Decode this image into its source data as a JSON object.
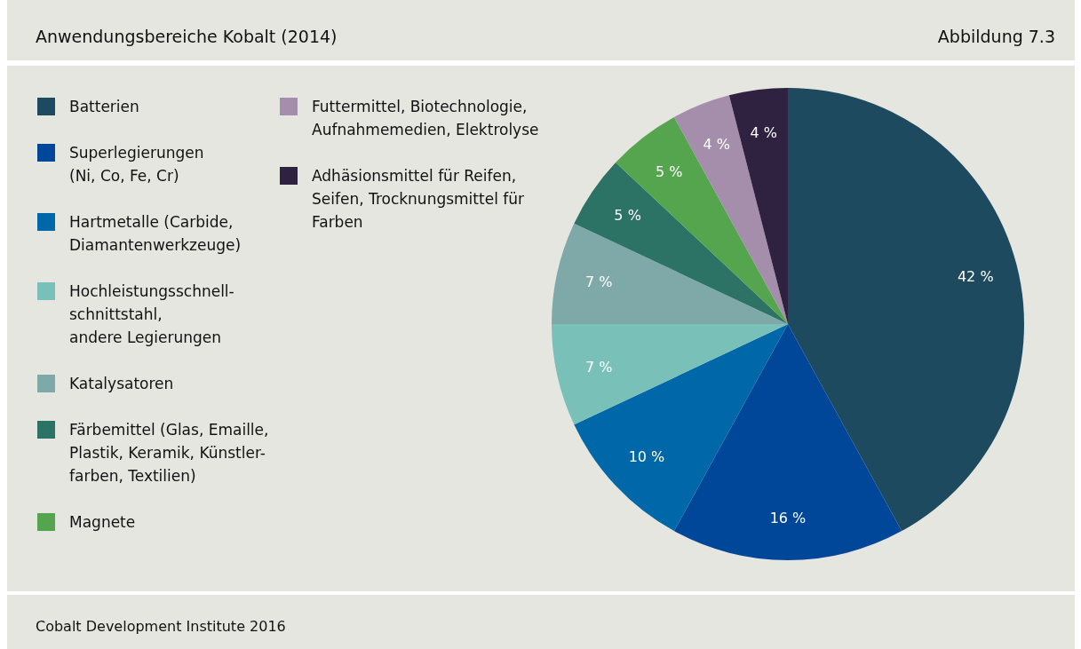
{
  "chart_data": {
    "type": "pie",
    "title": "Anwendungsbereiche Kobalt (2014)",
    "subtitle": "Abbildung 7.3",
    "categories": [
      "Batterien",
      "Superlegierungen\n(Ni, Co, Fe, Cr)",
      "Hartmetalle (Carbide,\nDiamantenwerkzeuge)",
      "Hochleistungsschnell-\nschnittstahl,\nandere Legierungen",
      "Katalysatoren",
      "Färbemittel (Glas, Emaille,\nPlastik, Keramik, Künstler-\nfarben, Textilien)",
      "Magnete",
      "Futtermittel, Biotechnologie,\nAufnahmemedien, Elektrolyse",
      "Adhäsionsmittel für Reifen,\nSeifen, Trocknungsmittel für\nFarben"
    ],
    "values": [
      42,
      16,
      10,
      7,
      7,
      5,
      5,
      4,
      4
    ],
    "value_labels": [
      "42 %",
      "16 %",
      "10 %",
      "7 %",
      "7 %",
      "5 %",
      "5 %",
      "4 %",
      "4 %"
    ],
    "colors": [
      "#1e4a60",
      "#00479a",
      "#0068a8",
      "#78c0b8",
      "#7fa8a8",
      "#2c7366",
      "#55a44e",
      "#a58eab",
      "#2e2240"
    ],
    "legend": "left",
    "annotations": [
      "Cobalt Development Institute 2016"
    ]
  }
}
